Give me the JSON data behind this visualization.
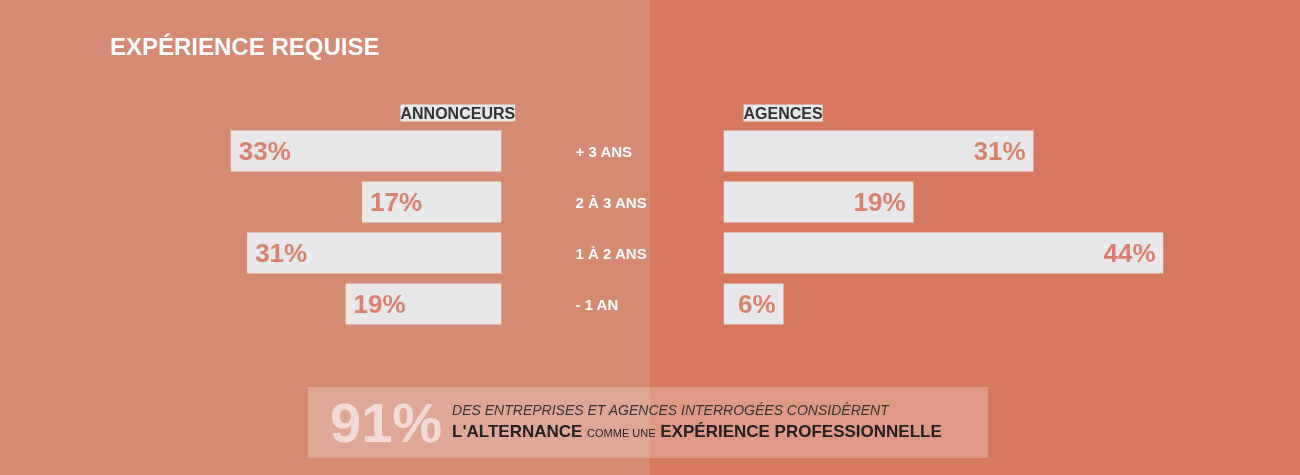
{
  "chart_data": [
    {
      "type": "bar",
      "orientation": "horizontal",
      "title": "EXPÉRIENCE REQUISE",
      "categories": [
        "+ 3 ANS",
        "2 À 3 ANS",
        "1 À 2 ANS",
        "- 1 AN"
      ],
      "series": [
        {
          "name": "ANNONCEURS",
          "color": "#e8e7e9",
          "values": [
            33,
            17,
            31,
            19
          ],
          "value_labels": [
            "33%",
            "17%",
            "31%",
            "19%"
          ]
        }
      ],
      "grid": false,
      "annotations": [
        "91%",
        "DES ENTREPRISES ET AGENCES INTERROGÉES CONSIDÈRENT",
        "L'ALTERNANCE",
        "COMME UNE",
        "EXPÉRIENCE PROFESSIONNELLE"
      ]
    },
    {
      "type": "bar",
      "orientation": "horizontal",
      "categories": [
        null,
        null,
        null,
        null
      ],
      "series": [
        {
          "name": "AGENCES",
          "color": "#e8e7e9",
          "values": [
            31,
            19,
            44,
            6
          ],
          "value_labels": [
            "31%",
            "19%",
            "44%",
            "6%"
          ]
        }
      ],
      "grid": false
    }
  ]
}
